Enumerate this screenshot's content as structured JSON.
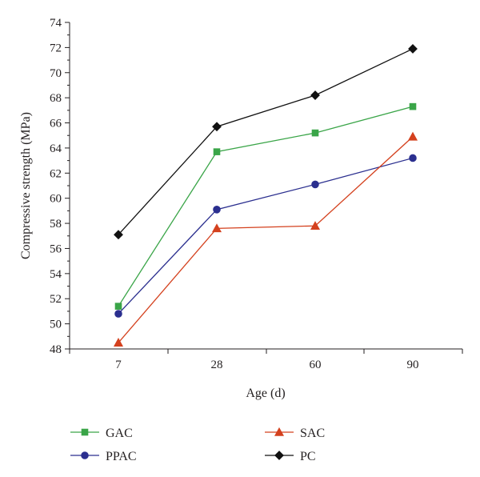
{
  "chart_data": {
    "type": "line",
    "categories": [
      "7",
      "28",
      "60",
      "90"
    ],
    "xlabel": "Age (d)",
    "ylabel": "Compressive strength (MPa)",
    "ylim": [
      48,
      74
    ],
    "yticks": [
      48,
      50,
      52,
      54,
      56,
      58,
      60,
      62,
      64,
      66,
      68,
      70,
      72,
      74
    ],
    "grid": false,
    "legend_position": "bottom",
    "series": [
      {
        "name": "GAC",
        "color": "#3aa548",
        "marker": "square",
        "values": [
          51.4,
          63.7,
          65.2,
          67.3
        ]
      },
      {
        "name": "SAC",
        "color": "#d4411e",
        "marker": "triangle",
        "values": [
          48.5,
          57.6,
          57.8,
          64.9
        ]
      },
      {
        "name": "PPAC",
        "color": "#2b2f8f",
        "marker": "circle",
        "values": [
          50.8,
          59.1,
          61.1,
          63.2
        ]
      },
      {
        "name": "PC",
        "color": "#111111",
        "marker": "diamond",
        "values": [
          57.1,
          65.7,
          68.2,
          71.9
        ]
      }
    ]
  }
}
